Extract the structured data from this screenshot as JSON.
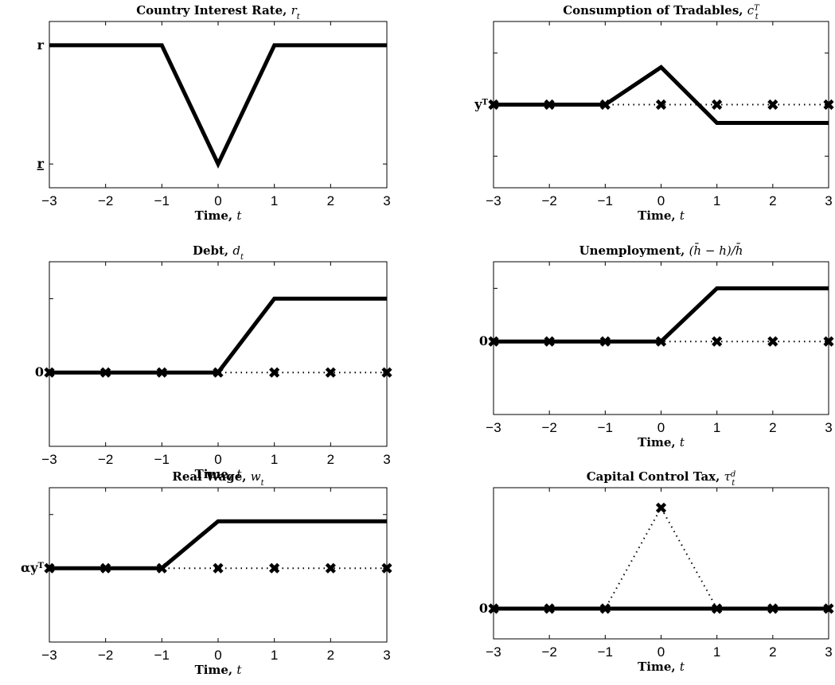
{
  "chart_data": [
    {
      "type": "line",
      "title": "Country Interest Rate, ",
      "title_math": "r",
      "title_sub": "t",
      "title_sup": "",
      "xlabel": "Time, ",
      "xlabel_math": "t",
      "x": [
        -3,
        -2,
        -1,
        0,
        1,
        2,
        3
      ],
      "xlim": [
        -3,
        3
      ],
      "ylim": [
        -1.4,
        1.4
      ],
      "y_ticks": [
        {
          "value": 1,
          "label": "r",
          "underline": false
        },
        {
          "value": -1,
          "label": "r",
          "underline": true
        }
      ],
      "series": [
        {
          "style": "solid",
          "markers": false,
          "values": [
            1,
            1,
            1,
            -1,
            1,
            1,
            1
          ]
        }
      ]
    },
    {
      "type": "line",
      "title": "Consumption of Tradables, ",
      "title_math": "c",
      "title_sub": "t",
      "title_sup": "T",
      "xlabel": "Time, ",
      "xlabel_math": "t",
      "x": [
        -3,
        -2,
        -1,
        0,
        1,
        2,
        3
      ],
      "xlim": [
        -3,
        3
      ],
      "ylim": [
        -1,
        1
      ],
      "y_ticks": [
        {
          "value": 0,
          "label": "y",
          "label_sup": "T",
          "underline": false
        }
      ],
      "minor_right_ticks": [
        0.62,
        -0.62
      ],
      "series": [
        {
          "style": "dotted",
          "markers": true,
          "values": [
            0,
            0,
            0,
            0,
            0,
            0,
            0
          ]
        },
        {
          "style": "solid",
          "markers": false,
          "values": [
            0,
            0,
            0,
            0.45,
            -0.22,
            -0.22,
            -0.22
          ]
        }
      ]
    },
    {
      "type": "line",
      "title": "Debt, ",
      "title_math": "d",
      "title_sub": "t",
      "title_sup": "",
      "xlabel": "Time, ",
      "xlabel_math": "t",
      "x": [
        -3,
        -2,
        -1,
        0,
        1,
        2,
        3
      ],
      "xlim": [
        -3,
        3
      ],
      "ylim": [
        -1,
        1.5
      ],
      "y_ticks": [
        {
          "value": 0,
          "label": "0",
          "underline": false
        }
      ],
      "minor_right_ticks": [
        1.0
      ],
      "series": [
        {
          "style": "dotted",
          "markers": true,
          "values": [
            0,
            0,
            0,
            0,
            0,
            0,
            0
          ]
        },
        {
          "style": "solid",
          "markers": false,
          "values": [
            0,
            0,
            0,
            0,
            1,
            1,
            1
          ]
        }
      ]
    },
    {
      "type": "line",
      "title": "Unemployment, ",
      "title_math": "(h̄ − h)/h̄",
      "title_sub": "",
      "title_sup": "",
      "xlabel": "Time, ",
      "xlabel_math": "t",
      "x": [
        -3,
        -2,
        -1,
        0,
        1,
        2,
        3
      ],
      "xlim": [
        -3,
        3
      ],
      "ylim": [
        -1.1,
        1.2
      ],
      "y_ticks": [
        {
          "value": 0,
          "label": "0",
          "underline": false
        }
      ],
      "minor_right_ticks": [
        0.8
      ],
      "series": [
        {
          "style": "dotted",
          "markers": true,
          "values": [
            0,
            0,
            0,
            0,
            0,
            0,
            0
          ]
        },
        {
          "style": "solid",
          "markers": false,
          "values": [
            0,
            0,
            0,
            0,
            0.8,
            0.8,
            0.8
          ]
        }
      ]
    },
    {
      "type": "line",
      "title": "Real Wage, ",
      "title_math": "w",
      "title_sub": "t",
      "title_sup": "",
      "xlabel": "Time, ",
      "xlabel_math": "t",
      "x": [
        -3,
        -2,
        -1,
        0,
        1,
        2,
        3
      ],
      "xlim": [
        -3,
        3
      ],
      "ylim": [
        -1.1,
        1.2
      ],
      "y_ticks": [
        {
          "value": 0,
          "label": "αy",
          "label_sup": "T",
          "underline": false
        }
      ],
      "minor_right_ticks": [
        0.8
      ],
      "series": [
        {
          "style": "dotted",
          "markers": true,
          "values": [
            0,
            0,
            0,
            0,
            0,
            0,
            0
          ]
        },
        {
          "style": "solid",
          "markers": false,
          "values": [
            0,
            0,
            0,
            0.7,
            0.7,
            0.7,
            0.7
          ]
        }
      ]
    },
    {
      "type": "line",
      "title": "Capital Control Tax, ",
      "title_math": "τ",
      "title_sub": "t",
      "title_sup": "d",
      "xlabel": "Time, ",
      "xlabel_math": "t",
      "x": [
        -3,
        -2,
        -1,
        0,
        1,
        2,
        3
      ],
      "xlim": [
        -3,
        3
      ],
      "ylim": [
        -0.3,
        1.2
      ],
      "y_ticks": [
        {
          "value": 0,
          "label": "0",
          "underline": false
        }
      ],
      "series": [
        {
          "style": "dotted",
          "markers": true,
          "values": [
            0,
            0,
            0,
            1,
            0,
            0,
            0
          ]
        },
        {
          "style": "solid",
          "markers": false,
          "values": [
            0,
            0,
            0,
            0,
            0,
            0,
            0
          ]
        }
      ]
    }
  ]
}
